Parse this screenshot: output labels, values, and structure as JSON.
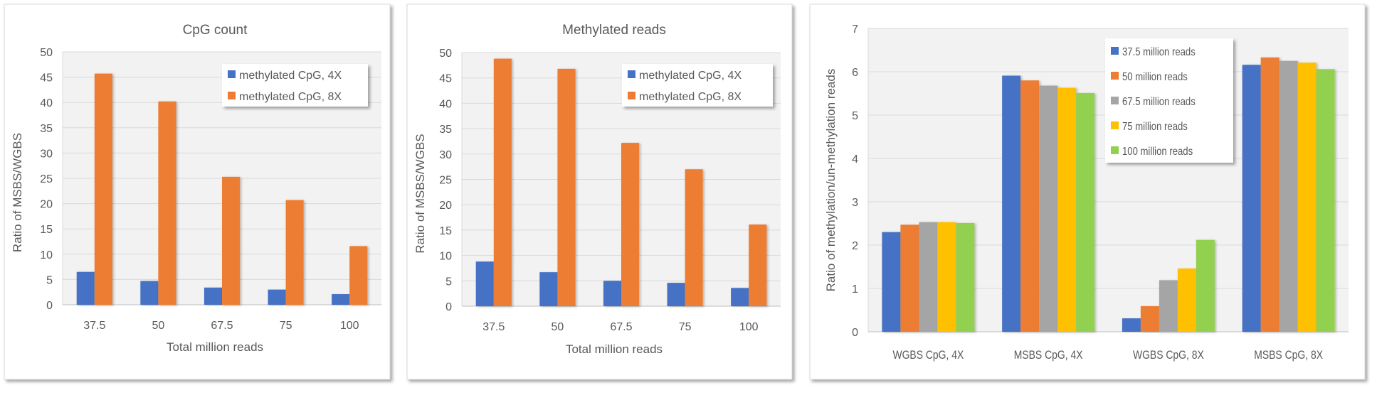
{
  "chart_data": [
    {
      "type": "bar",
      "title": "CpG count",
      "xlabel": "Total million reads",
      "ylabel": "Ratio of MSBS/WGBS",
      "categories": [
        "37.5",
        "50",
        "67.5",
        "75",
        "100"
      ],
      "ylim": [
        0,
        50
      ],
      "yticks": [
        0,
        5,
        10,
        15,
        20,
        25,
        30,
        35,
        40,
        45,
        50
      ],
      "grid": true,
      "legend_position": "top-right",
      "series": [
        {
          "name": "methylated CpG, 4X",
          "color": "#4472C4",
          "values": [
            6.5,
            4.7,
            3.4,
            3.0,
            2.1
          ]
        },
        {
          "name": "methylated CpG, 8X",
          "color": "#ED7D31",
          "values": [
            45.7,
            40.2,
            25.3,
            20.7,
            11.6
          ]
        }
      ]
    },
    {
      "type": "bar",
      "title": "Methylated reads",
      "xlabel": "Total million reads",
      "ylabel": "Ratio of MSBS/WGBS",
      "categories": [
        "37.5",
        "50",
        "67.5",
        "75",
        "100"
      ],
      "ylim": [
        0,
        50
      ],
      "yticks": [
        0,
        5,
        10,
        15,
        20,
        25,
        30,
        35,
        40,
        45,
        50
      ],
      "grid": true,
      "legend_position": "top-right",
      "series": [
        {
          "name": "methylated CpG, 4X",
          "color": "#4472C4",
          "values": [
            8.8,
            6.7,
            5.0,
            4.6,
            3.6
          ]
        },
        {
          "name": "methylated CpG, 8X",
          "color": "#ED7D31",
          "values": [
            48.8,
            46.8,
            32.2,
            27.0,
            16.1
          ]
        }
      ]
    },
    {
      "type": "bar",
      "title": "",
      "xlabel": "",
      "ylabel": "Ratio of methylation/un-methylation reads",
      "categories": [
        "WGBS CpG, 4X",
        "MSBS CpG, 4X",
        "WGBS CpG, 8X",
        "MSBS CpG, 8X"
      ],
      "ylim": [
        0,
        7
      ],
      "yticks": [
        0,
        1,
        2,
        3,
        4,
        5,
        6,
        7
      ],
      "grid": true,
      "legend_position": "top-center",
      "series": [
        {
          "name": "37.5 million reads",
          "color": "#4472C4",
          "values": [
            2.3,
            5.91,
            0.31,
            6.16
          ]
        },
        {
          "name": "50 million reads",
          "color": "#ED7D31",
          "values": [
            2.47,
            5.8,
            0.59,
            6.33
          ]
        },
        {
          "name": "67.5 million reads",
          "color": "#A5A5A5",
          "values": [
            2.53,
            5.68,
            1.19,
            6.25
          ]
        },
        {
          "name": "75 million reads",
          "color": "#FFC000",
          "values": [
            2.53,
            5.63,
            1.46,
            6.21
          ]
        },
        {
          "name": "100 million reads",
          "color": "#92D050",
          "values": [
            2.51,
            5.51,
            2.12,
            6.06
          ]
        }
      ]
    }
  ]
}
